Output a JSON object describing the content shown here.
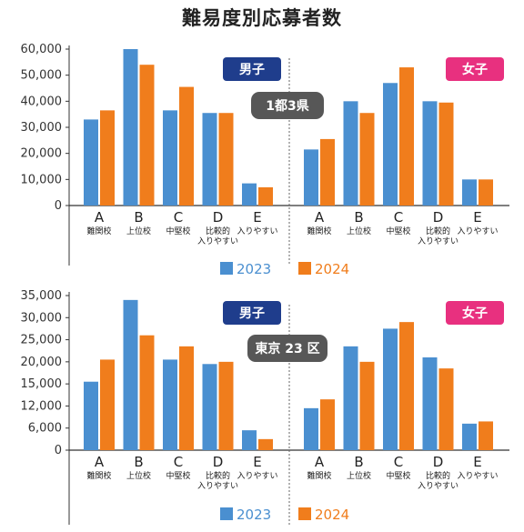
{
  "title": "難易度別応募者数",
  "colors": {
    "y2023": "#4a8fd0",
    "y2024": "#f07d1c",
    "male_badge": "#1f3d8c",
    "female_badge": "#e8307f",
    "region_badge": "#575757",
    "axis": "#333333"
  },
  "legend": [
    "2023",
    "2024"
  ],
  "chart_data": [
    {
      "type": "bar",
      "region": "1都3県",
      "groups": [
        "男子",
        "女子"
      ],
      "categories": [
        "A",
        "B",
        "C",
        "D",
        "E"
      ],
      "category_labels": [
        [
          "難関校"
        ],
        [
          "上位校"
        ],
        [
          "中堅校"
        ],
        [
          "比較的",
          "入りやすい"
        ],
        [
          "入りやすい"
        ]
      ],
      "series": [
        {
          "name": "2023",
          "male": [
            33000,
            60000,
            36500,
            35500,
            8500
          ],
          "female": [
            21500,
            40000,
            47000,
            40000,
            10000
          ]
        },
        {
          "name": "2024",
          "male": [
            36500,
            54000,
            45500,
            35500,
            7000
          ],
          "female": [
            25500,
            35500,
            53000,
            39500,
            10000
          ]
        }
      ],
      "yticks": [
        "0",
        "10,000",
        "20,000",
        "30,000",
        "40,000",
        "50,000",
        "60,000"
      ],
      "ylim": [
        0,
        60000
      ]
    },
    {
      "type": "bar",
      "region": "東京 23 区",
      "groups": [
        "男子",
        "女子"
      ],
      "categories": [
        "A",
        "B",
        "C",
        "D",
        "E"
      ],
      "category_labels": [
        [
          "難関校"
        ],
        [
          "上位校"
        ],
        [
          "中堅校"
        ],
        [
          "比較的",
          "入りやすい"
        ],
        [
          "入りやすい"
        ]
      ],
      "series": [
        {
          "name": "2023",
          "male": [
            15500,
            34000,
            20500,
            19500,
            4500
          ],
          "female": [
            9500,
            23500,
            27500,
            21000,
            6000
          ]
        },
        {
          "name": "2024",
          "male": [
            20500,
            26000,
            23500,
            20000,
            2500
          ],
          "female": [
            11500,
            20000,
            29000,
            18500,
            6500
          ]
        }
      ],
      "yticks": [
        "0",
        "6,000",
        "12,000",
        "15,000",
        "20,000",
        "25,000",
        "30,000",
        "35,000"
      ],
      "ylim": [
        0,
        35000
      ]
    }
  ]
}
